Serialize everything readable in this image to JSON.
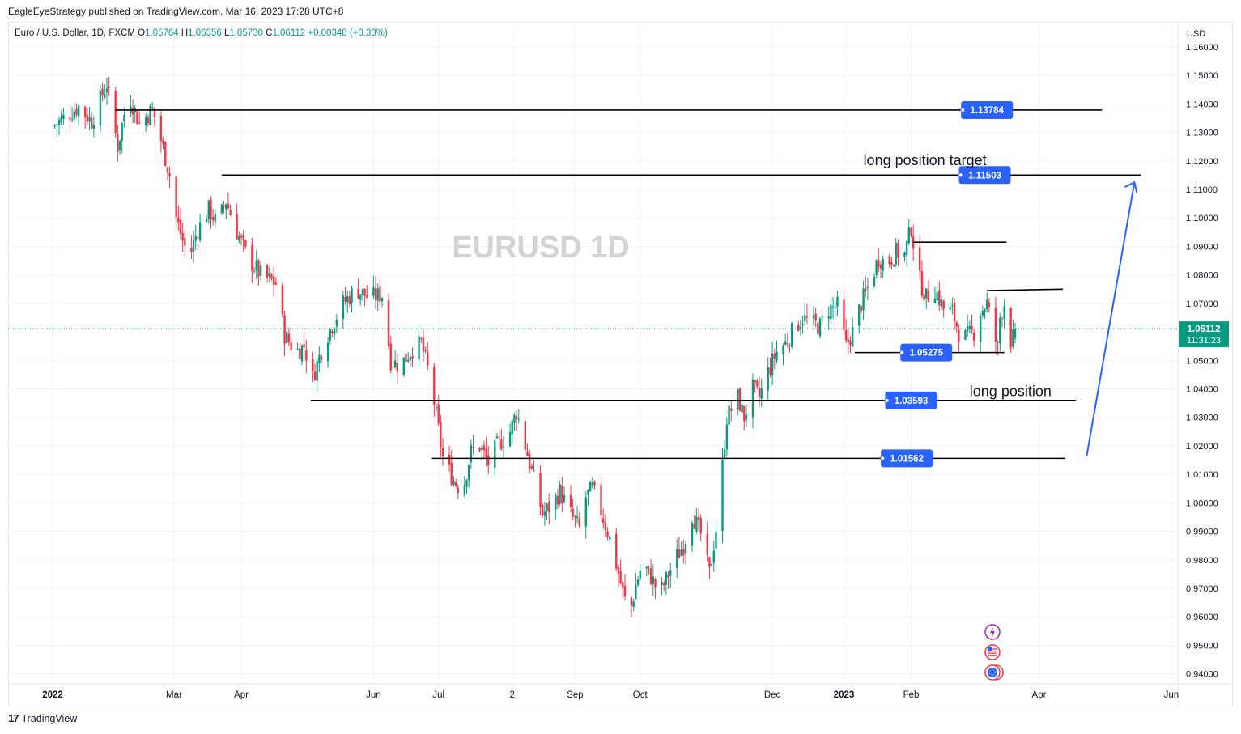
{
  "header": {
    "published": "EagleEyeStrategy published on TradingView.com, Mar 16, 2023 17:28 UTC+8"
  },
  "legend": {
    "symbol": "Euro / U.S. Dollar, 1D, FXCM",
    "o_label": "O",
    "o": "1.05764",
    "h_label": "H",
    "h": "1.06356",
    "l_label": "L",
    "l": "1.05730",
    "c_label": "C",
    "c": "1.06112",
    "change": "+0.00348 (+0.33%)"
  },
  "footer": {
    "brand": "TradingView",
    "mark": "17"
  },
  "colors": {
    "up": "#089981",
    "down": "#f23645",
    "badge": "#2962ff",
    "grid": "#f0f3fa",
    "line": "#000000",
    "arrow": "#2962ff"
  },
  "chart_data": {
    "type": "candlestick",
    "watermark": "EURUSD  1D",
    "currency_label": "USD",
    "y_ticks": [
      "1.16000",
      "1.15000",
      "1.14000",
      "1.13000",
      "1.12000",
      "1.11000",
      "1.10000",
      "1.09000",
      "1.08000",
      "1.07000",
      "1.06000",
      "1.05000",
      "1.04000",
      "1.03000",
      "1.02000",
      "1.01000",
      "1.00000",
      "0.99000",
      "0.98000",
      "0.97000",
      "0.96000",
      "0.95000",
      "0.94000"
    ],
    "ylim": [
      0.9365,
      1.1685
    ],
    "x_labels": [
      {
        "label": "2022",
        "t": 0,
        "bold": true
      },
      {
        "label": "Mar",
        "t": 56
      },
      {
        "label": "Apr",
        "t": 87
      },
      {
        "label": "Jun",
        "t": 148
      },
      {
        "label": "Jul",
        "t": 178
      },
      {
        "label": "2",
        "t": 212
      },
      {
        "label": "Sep",
        "t": 241
      },
      {
        "label": "Oct",
        "t": 271
      },
      {
        "label": "Dec",
        "t": 332
      },
      {
        "label": "2023",
        "t": 365,
        "bold": true
      },
      {
        "label": "Feb",
        "t": 396
      },
      {
        "label": "Apr",
        "t": 455
      },
      {
        "label": "Jun",
        "t": 516
      }
    ],
    "x_axis_note": "t = calendar days since start of 2022",
    "current_price": "1.06112",
    "countdown": "11:31:23",
    "current_value": 1.06112,
    "levels": [
      {
        "name": "level-1-13784",
        "value": 1.13784,
        "label": "1.13784",
        "t_start": 29,
        "t_end": 484,
        "badge_t": 431
      },
      {
        "name": "level-1-11503",
        "value": 1.11503,
        "label": "1.11503",
        "t_start": 78,
        "t_end": 502,
        "badge_t": 430
      },
      {
        "name": "level-1-03593",
        "value": 1.03593,
        "label": "1.03593",
        "t_start": 119,
        "t_end": 472,
        "badge_t": 396
      },
      {
        "name": "level-1-01562",
        "value": 1.01562,
        "label": "1.01562",
        "t_start": 175,
        "t_end": 467,
        "badge_t": 394
      },
      {
        "name": "level-1-05275",
        "value": 1.05275,
        "label": "1.05275",
        "t_start": 370,
        "t_end": 439,
        "badge_t": 403
      }
    ],
    "short_lines": [
      {
        "name": "resistance-1-091",
        "y1": 1.0915,
        "y2": 1.0915,
        "t_start": 397,
        "t_end": 440
      },
      {
        "name": "resistance-1-074",
        "y1": 1.0745,
        "y2": 1.075,
        "t_start": 431,
        "t_end": 466
      }
    ],
    "annotations": [
      {
        "name": "long-position-target-label",
        "text": "long position target",
        "t": 374,
        "value": 1.1185
      },
      {
        "name": "long-position-label",
        "text": "long position",
        "t": 423,
        "value": 1.0375
      }
    ],
    "arrow": {
      "t_start": 477,
      "y_start": 1.0165,
      "t_end": 499,
      "y_end": 1.1125
    },
    "anchors": [
      {
        "t": 0,
        "v": 1.132
      },
      {
        "t": 12,
        "v": 1.139
      },
      {
        "t": 18,
        "v": 1.134
      },
      {
        "t": 25,
        "v": 1.147
      },
      {
        "t": 30,
        "v": 1.125
      },
      {
        "t": 35,
        "v": 1.144
      },
      {
        "t": 40,
        "v": 1.133
      },
      {
        "t": 46,
        "v": 1.138
      },
      {
        "t": 49,
        "v": 1.1305
      },
      {
        "t": 54,
        "v": 1.115
      },
      {
        "t": 57,
        "v": 1.1
      },
      {
        "t": 60,
        "v": 1.092
      },
      {
        "t": 63,
        "v": 1.086
      },
      {
        "t": 67,
        "v": 1.096
      },
      {
        "t": 72,
        "v": 1.103
      },
      {
        "t": 76,
        "v": 1.098
      },
      {
        "t": 80,
        "v": 1.106
      },
      {
        "t": 84,
        "v": 1.097
      },
      {
        "t": 90,
        "v": 1.086
      },
      {
        "t": 96,
        "v": 1.08
      },
      {
        "t": 103,
        "v": 1.077
      },
      {
        "t": 107,
        "v": 1.059
      },
      {
        "t": 112,
        "v": 1.053
      },
      {
        "t": 116,
        "v": 1.055
      },
      {
        "t": 120,
        "v": 1.044
      },
      {
        "t": 125,
        "v": 1.056
      },
      {
        "t": 130,
        "v": 1.064
      },
      {
        "t": 134,
        "v": 1.07
      },
      {
        "t": 140,
        "v": 1.075
      },
      {
        "t": 146,
        "v": 1.072
      },
      {
        "t": 152,
        "v": 1.073
      },
      {
        "t": 156,
        "v": 1.05
      },
      {
        "t": 160,
        "v": 1.048
      },
      {
        "t": 166,
        "v": 1.054
      },
      {
        "t": 170,
        "v": 1.056
      },
      {
        "t": 173,
        "v": 1.047
      },
      {
        "t": 175,
        "v": 1.04
      },
      {
        "t": 180,
        "v": 1.016
      },
      {
        "t": 185,
        "v": 1.008
      },
      {
        "t": 189,
        "v": 1.004
      },
      {
        "t": 193,
        "v": 1.018
      },
      {
        "t": 197,
        "v": 1.02
      },
      {
        "t": 201,
        "v": 1.014
      },
      {
        "t": 205,
        "v": 1.02
      },
      {
        "t": 211,
        "v": 1.025
      },
      {
        "t": 214,
        "v": 1.032
      },
      {
        "t": 218,
        "v": 1.02
      },
      {
        "t": 223,
        "v": 1.005
      },
      {
        "t": 226,
        "v": 0.996
      },
      {
        "t": 230,
        "v": 0.999
      },
      {
        "t": 234,
        "v": 1.004
      },
      {
        "t": 239,
        "v": 0.996
      },
      {
        "t": 243,
        "v": 0.991
      },
      {
        "t": 246,
        "v": 1.002
      },
      {
        "t": 249,
        "v": 1.005
      },
      {
        "t": 253,
        "v": 0.997
      },
      {
        "t": 258,
        "v": 0.985
      },
      {
        "t": 262,
        "v": 0.972
      },
      {
        "t": 266,
        "v": 0.96
      },
      {
        "t": 269,
        "v": 0.971
      },
      {
        "t": 272,
        "v": 0.979
      },
      {
        "t": 276,
        "v": 0.974
      },
      {
        "t": 280,
        "v": 0.968
      },
      {
        "t": 283,
        "v": 0.973
      },
      {
        "t": 287,
        "v": 0.98
      },
      {
        "t": 291,
        "v": 0.985
      },
      {
        "t": 295,
        "v": 0.996
      },
      {
        "t": 299,
        "v": 0.989
      },
      {
        "t": 303,
        "v": 0.975
      },
      {
        "t": 307,
        "v": 0.996
      },
      {
        "t": 311,
        "v": 1.03
      },
      {
        "t": 316,
        "v": 1.037
      },
      {
        "t": 319,
        "v": 1.03
      },
      {
        "t": 323,
        "v": 1.04
      },
      {
        "t": 326,
        "v": 1.037
      },
      {
        "t": 330,
        "v": 1.046
      },
      {
        "t": 334,
        "v": 1.053
      },
      {
        "t": 338,
        "v": 1.056
      },
      {
        "t": 342,
        "v": 1.061
      },
      {
        "t": 346,
        "v": 1.065
      },
      {
        "t": 350,
        "v": 1.063
      },
      {
        "t": 354,
        "v": 1.062
      },
      {
        "t": 358,
        "v": 1.068
      },
      {
        "t": 362,
        "v": 1.069
      },
      {
        "t": 366,
        "v": 1.055
      },
      {
        "t": 369,
        "v": 1.06
      },
      {
        "t": 373,
        "v": 1.07
      },
      {
        "t": 377,
        "v": 1.077
      },
      {
        "t": 381,
        "v": 1.086
      },
      {
        "t": 385,
        "v": 1.084
      },
      {
        "t": 389,
        "v": 1.088
      },
      {
        "t": 393,
        "v": 1.087
      },
      {
        "t": 396,
        "v": 1.097
      },
      {
        "t": 399,
        "v": 1.08
      },
      {
        "t": 403,
        "v": 1.072
      },
      {
        "t": 407,
        "v": 1.075
      },
      {
        "t": 411,
        "v": 1.068
      },
      {
        "t": 415,
        "v": 1.067
      },
      {
        "t": 418,
        "v": 1.06
      },
      {
        "t": 421,
        "v": 1.058
      },
      {
        "t": 425,
        "v": 1.06
      },
      {
        "t": 428,
        "v": 1.067
      },
      {
        "t": 431,
        "v": 1.07
      },
      {
        "t": 434,
        "v": 1.06
      },
      {
        "t": 436,
        "v": 1.054
      },
      {
        "t": 437,
        "v": 1.065
      },
      {
        "t": 439,
        "v": 1.07
      },
      {
        "t": 441,
        "v": 1.056
      },
      {
        "t": 443,
        "v": 1.058
      },
      {
        "t": 444,
        "v": 1.0611
      }
    ]
  }
}
